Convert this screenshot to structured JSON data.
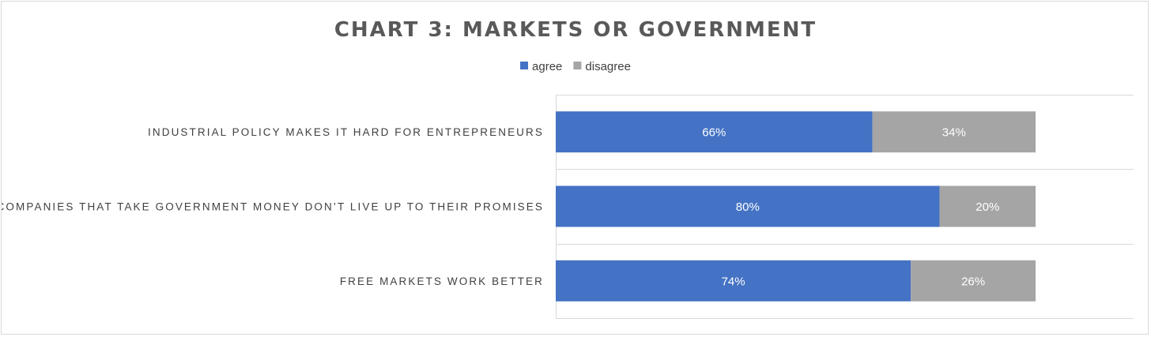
{
  "chart_data": {
    "type": "bar",
    "orientation": "horizontal",
    "stacked": true,
    "title": "CHART 3: MARKETS OR GOVERNMENT",
    "categories": [
      "INDUSTRIAL POLICY MAKES IT HARD FOR ENTREPRENEURS",
      "COMPANIES THAT TAKE GOVERNMENT MONEY DON’T LIVE UP TO THEIR PROMISES",
      "FREE MARKETS WORK BETTER"
    ],
    "series": [
      {
        "name": "agree",
        "color": "#4472c4",
        "values": [
          66,
          80,
          74
        ],
        "labels": [
          "66%",
          "80%",
          "74%"
        ]
      },
      {
        "name": "disagree",
        "color": "#a5a5a5",
        "values": [
          34,
          20,
          26
        ],
        "labels": [
          "34%",
          "20%",
          "26%"
        ]
      }
    ],
    "xlim": [
      0,
      100
    ],
    "legend_position": "top",
    "grid": true
  }
}
